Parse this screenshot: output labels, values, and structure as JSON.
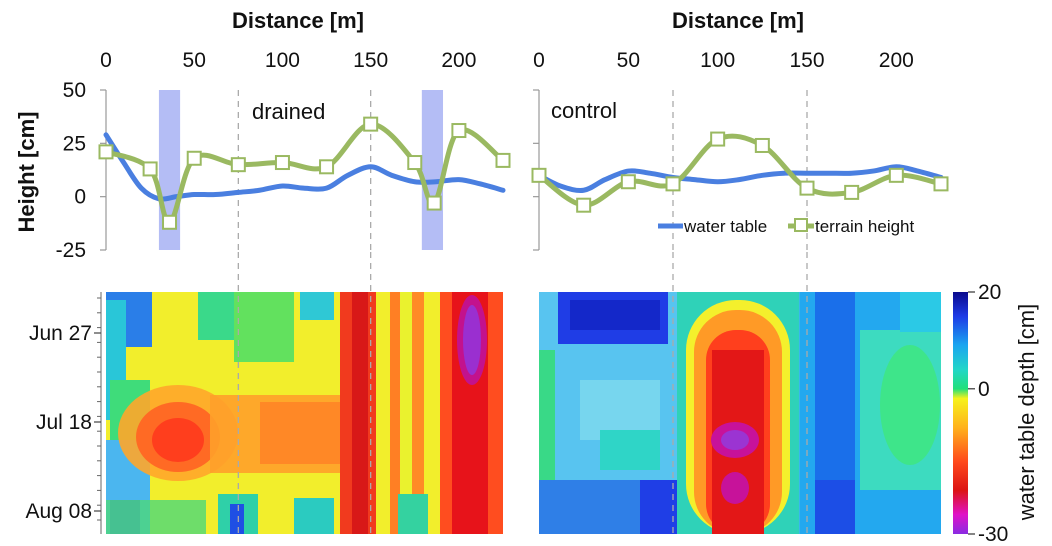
{
  "chart_data": [
    {
      "type": "line",
      "panel_label": "drained",
      "xlabel": "Distance [m]",
      "ylabel": "Height [cm]",
      "xlim": [
        0,
        225
      ],
      "ylim": [
        -25,
        50
      ],
      "xticks": [
        "0",
        "50",
        "100",
        "150",
        "200"
      ],
      "yticks": [
        "50",
        "25",
        "0",
        "-25"
      ],
      "ditch_bands": [
        [
          30,
          42
        ],
        [
          179,
          191
        ]
      ],
      "dashed_x": [
        75,
        150
      ],
      "series": [
        {
          "name": "water table",
          "color": "#4a7fe0",
          "markers": false,
          "x": [
            0,
            10,
            20,
            30,
            40,
            50,
            62,
            75,
            87,
            100,
            112,
            125,
            137,
            150,
            162,
            175,
            187,
            200,
            212,
            225
          ],
          "y": [
            29,
            16,
            4,
            -1,
            0,
            1,
            1,
            2,
            3,
            5,
            4,
            4,
            10,
            14,
            10,
            7,
            7,
            8,
            6,
            3
          ]
        },
        {
          "name": "terrain height",
          "color": "#9ab961",
          "markers": true,
          "x": [
            0,
            25,
            36,
            50,
            75,
            100,
            125,
            150,
            175,
            186,
            200,
            225
          ],
          "y": [
            21,
            13,
            -12,
            18,
            15,
            16,
            14,
            34,
            16,
            -3,
            31,
            17
          ]
        }
      ]
    },
    {
      "type": "line",
      "panel_label": "control",
      "xlabel": "Distance [m]",
      "ylabel": "",
      "xlim": [
        0,
        225
      ],
      "ylim": [
        -25,
        50
      ],
      "xticks": [
        "0",
        "50",
        "100",
        "150",
        "200"
      ],
      "dashed_x": [
        75,
        150
      ],
      "legend": [
        "water table",
        "terrain height"
      ],
      "series": [
        {
          "name": "water table",
          "color": "#4a7fe0",
          "markers": false,
          "x": [
            0,
            12,
            25,
            37,
            50,
            62,
            75,
            87,
            100,
            112,
            125,
            137,
            150,
            162,
            175,
            187,
            200,
            212,
            225
          ],
          "y": [
            10,
            5,
            3,
            8,
            12,
            11,
            9,
            8,
            7,
            8,
            10,
            11,
            11,
            11,
            11,
            12,
            14,
            12,
            9
          ]
        },
        {
          "name": "terrain height",
          "color": "#9ab961",
          "markers": true,
          "x": [
            0,
            25,
            50,
            75,
            100,
            125,
            150,
            175,
            200,
            225
          ],
          "y": [
            10,
            -4,
            7,
            6,
            27,
            24,
            4,
            2,
            10,
            6
          ]
        }
      ]
    },
    {
      "type": "heatmap",
      "yticks": [
        "Jun 27",
        "Jul 18",
        "Aug 08"
      ],
      "dashed_x": [
        75,
        150
      ],
      "note": "drained heatmap: distance along x (0-225 m), dates along y"
    },
    {
      "type": "heatmap",
      "dashed_x": [
        75,
        150
      ],
      "note": "control heatmap: distance along x (0-225 m), dates along y"
    },
    {
      "type": "colorbar",
      "label": "water table depth [cm]",
      "ticks": [
        "20",
        "0",
        "-30"
      ],
      "range": [
        -30,
        20
      ]
    }
  ]
}
